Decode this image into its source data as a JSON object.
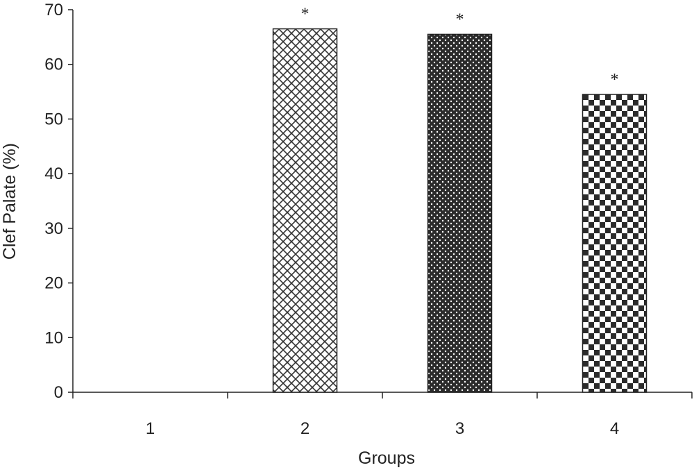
{
  "chart_data": {
    "type": "bar",
    "title": "",
    "xlabel": "Groups",
    "ylabel": "Clef Palate (%)",
    "categories": [
      "1",
      "2",
      "3",
      "4"
    ],
    "values": [
      0,
      66.5,
      65.5,
      54.5
    ],
    "annotations": [
      "",
      "*",
      "*",
      "*"
    ],
    "patterns": [
      "none",
      "crosshatch",
      "dots",
      "checker"
    ],
    "ylim": [
      0,
      70
    ],
    "yticks": [
      "0",
      "10",
      "20",
      "30",
      "40",
      "50",
      "60",
      "70"
    ],
    "grid": false,
    "legend": "none"
  }
}
